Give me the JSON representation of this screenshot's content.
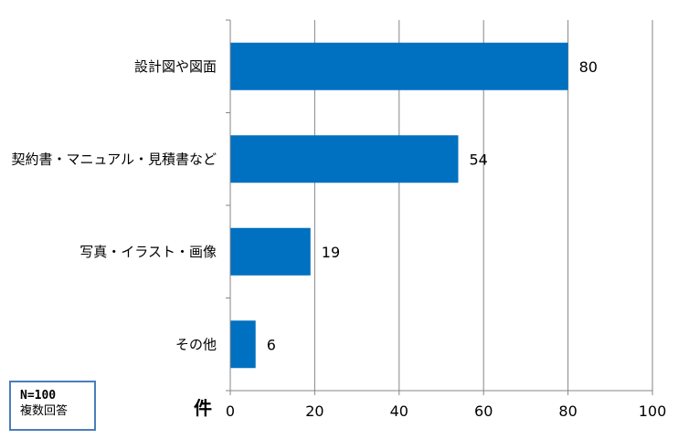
{
  "chart_data": {
    "type": "bar",
    "orientation": "horizontal",
    "categories": [
      "設計図や図面",
      "契約書・マニュアル・見積書など",
      "写真・イラスト・画像",
      "その他"
    ],
    "values": [
      80,
      54,
      19,
      6
    ],
    "xlim": [
      0,
      100
    ],
    "xticks": [
      0,
      20,
      40,
      60,
      80,
      100
    ],
    "xlabel": "件",
    "grid": "vertical",
    "bar_color": "#0070c0"
  },
  "note": {
    "line1": "N=100",
    "line2": "複数回答"
  }
}
